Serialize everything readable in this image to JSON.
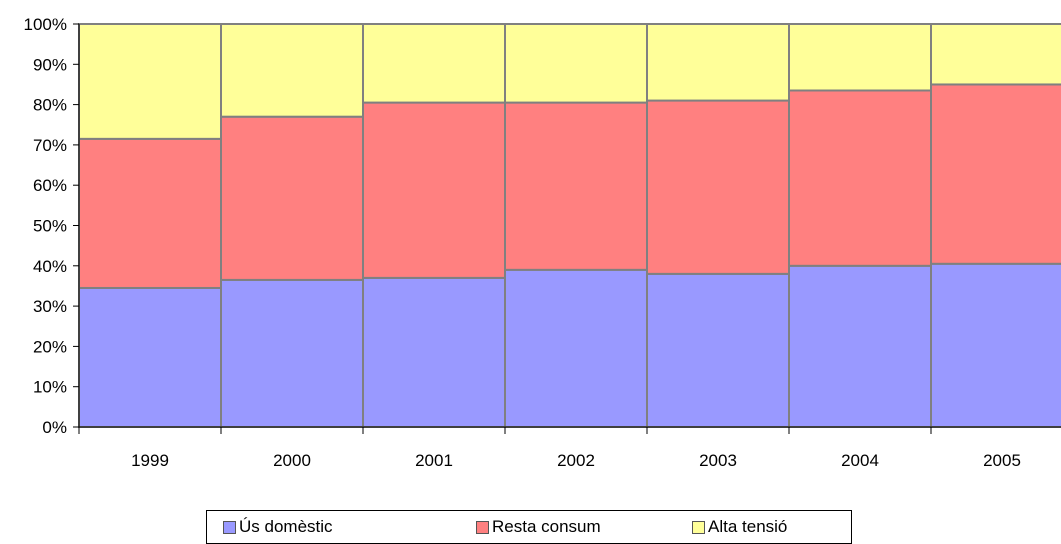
{
  "chart_data": {
    "type": "bar",
    "stacked": true,
    "percent": true,
    "categories": [
      "1999",
      "2000",
      "2001",
      "2002",
      "2003",
      "2004",
      "2005"
    ],
    "series": [
      {
        "name": "Ús domèstic",
        "color": "#9999ff",
        "values": [
          34.5,
          36.5,
          37,
          39,
          38,
          40,
          40.5
        ]
      },
      {
        "name": "Resta consum",
        "color": "#ff8080",
        "values": [
          37,
          40.5,
          43.5,
          41.5,
          43,
          43.5,
          44.5
        ]
      },
      {
        "name": "Alta tensió",
        "color": "#ffff99",
        "values": [
          28.5,
          23,
          19.5,
          19.5,
          19,
          16.5,
          15
        ]
      }
    ],
    "y_ticks": [
      "0%",
      "10%",
      "20%",
      "30%",
      "40%",
      "50%",
      "60%",
      "70%",
      "80%",
      "90%",
      "100%"
    ],
    "ylim": [
      0,
      100
    ],
    "grid": false,
    "legend_position": "bottom",
    "bar_border_color": "#808080"
  }
}
